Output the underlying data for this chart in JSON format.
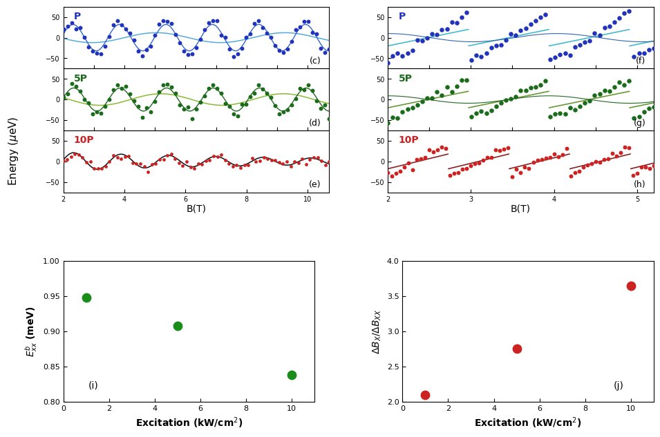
{
  "panel_c": {
    "label": "P",
    "color_dot": "#2233bb",
    "color_line_wide": "#55aadd",
    "color_line_narrow": "#3366cc",
    "xlim": [
      2,
      10.7
    ],
    "ylim": [
      -75,
      75
    ],
    "yticks": [
      -50,
      0,
      50
    ],
    "panel_id": "(c)"
  },
  "panel_d": {
    "label": "5P",
    "color_dot": "#1a6b1a",
    "color_line_wide": "#88bb33",
    "color_line_narrow": "#226622",
    "xlim": [
      2,
      10.7
    ],
    "ylim": [
      -75,
      75
    ],
    "yticks": [
      -50,
      0,
      50
    ],
    "panel_id": "(d)"
  },
  "panel_e": {
    "label": "10P",
    "color_dot": "#cc2222",
    "color_line": "#111111",
    "xlim": [
      2,
      10.7
    ],
    "ylim": [
      -75,
      75
    ],
    "yticks": [
      -50,
      0,
      50
    ],
    "xticks": [
      2,
      4,
      6,
      8,
      10
    ],
    "panel_id": "(e)"
  },
  "panel_f": {
    "label": "P",
    "color_dot": "#2233bb",
    "color_line_saw": "#44bbcc",
    "color_line_sine": "#3366aa",
    "xlim": [
      2,
      5.2
    ],
    "ylim": [
      -75,
      75
    ],
    "yticks": [
      -50,
      0,
      50
    ],
    "panel_id": "(f)"
  },
  "panel_g": {
    "label": "5P",
    "color_dot": "#1a6b1a",
    "color_line_saw": "#669933",
    "color_line_sine": "#226622",
    "xlim": [
      2,
      5.2
    ],
    "ylim": [
      -75,
      75
    ],
    "yticks": [
      -50,
      0,
      50
    ],
    "panel_id": "(g)"
  },
  "panel_h": {
    "label": "10P",
    "color_dot": "#cc2222",
    "color_line": "#882222",
    "xlim": [
      2,
      5.2
    ],
    "ylim": [
      -75,
      75
    ],
    "yticks": [
      -50,
      0,
      50
    ],
    "xticks": [
      2,
      3,
      4,
      5
    ],
    "panel_id": "(h)"
  },
  "panel_i": {
    "x": [
      1,
      5,
      10
    ],
    "y": [
      0.948,
      0.908,
      0.838
    ],
    "color_dot": "#1a8c1a",
    "xlim": [
      0,
      11
    ],
    "ylim": [
      0.8,
      1.0
    ],
    "yticks": [
      0.8,
      0.85,
      0.9,
      0.95,
      1.0
    ],
    "xticks": [
      0,
      2,
      4,
      6,
      8,
      10
    ],
    "xlabel": "Excitation (kW/cm$^{2}$)",
    "ylabel": "$E^{b}_{xx}$ (meV)",
    "panel_id": "(i)"
  },
  "panel_j": {
    "x": [
      1,
      5,
      10
    ],
    "y": [
      2.1,
      2.75,
      3.65
    ],
    "color_dot": "#cc2222",
    "xlim": [
      0,
      11
    ],
    "ylim": [
      2.0,
      4.0
    ],
    "yticks": [
      2.0,
      2.5,
      3.0,
      3.5,
      4.0
    ],
    "xticks": [
      0,
      2,
      4,
      6,
      8,
      10
    ],
    "xlabel": "Excitation (kW/cm$^{2}$)",
    "ylabel": "$\\Delta B_X/\\Delta B_{XX}$",
    "panel_id": "(j)"
  }
}
